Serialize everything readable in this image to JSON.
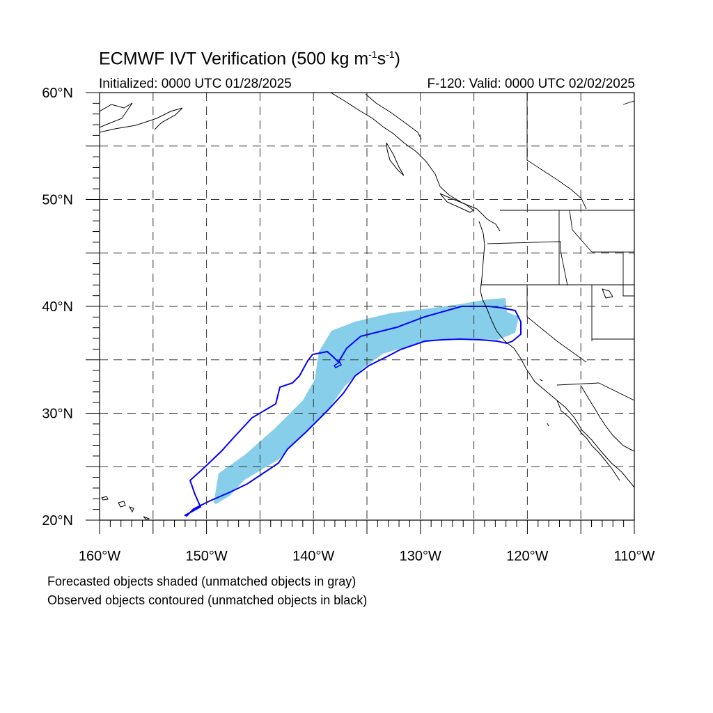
{
  "header": {
    "title_main": "ECMWF IVT Verification (500 kg m",
    "title_sup1": "-1",
    "title_mid": "s",
    "title_sup2": "-1",
    "title_end": ")",
    "initialized": "Initialized: 0000 UTC 01/28/2025",
    "valid": "F-120: Valid: 0000 UTC 02/02/2025"
  },
  "map": {
    "projection": "cylindrical equidistant",
    "lon_range": [
      -160,
      -110
    ],
    "lat_range": [
      20,
      60
    ],
    "grid": true,
    "lat_labels": [
      "20°N",
      "30°N",
      "40°N",
      "50°N",
      "60°N"
    ],
    "lon_labels": [
      "160°W",
      "150°W",
      "140°W",
      "130°W",
      "120°W",
      "110°W"
    ],
    "colors": {
      "forecast_fill": "#87ceeb",
      "observed_contour": "#0000ff",
      "coast": "#000000",
      "grid": "#333333"
    }
  },
  "footer": {
    "line1": "Forecasted objects shaded (unmatched objects in gray)",
    "line2": "Observed objects contoured (unmatched objects in black)"
  }
}
